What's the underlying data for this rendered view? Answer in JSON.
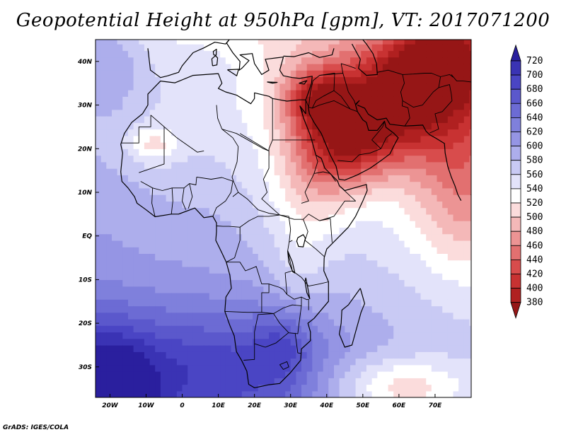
{
  "title": "Geopotential Height at 950hPa [gpm], VT: 2017071200",
  "credit": "GrADS: IGES/COLA",
  "map": {
    "lon_range": [
      -24,
      80
    ],
    "lat_range": [
      -37,
      45
    ],
    "lon_ticks": [
      {
        "value": -20,
        "label": "20W"
      },
      {
        "value": -10,
        "label": "10W"
      },
      {
        "value": 0,
        "label": "0"
      },
      {
        "value": 10,
        "label": "10E"
      },
      {
        "value": 20,
        "label": "20E"
      },
      {
        "value": 30,
        "label": "30E"
      },
      {
        "value": 40,
        "label": "40E"
      },
      {
        "value": 50,
        "label": "50E"
      },
      {
        "value": 60,
        "label": "60E"
      },
      {
        "value": 70,
        "label": "70E"
      }
    ],
    "lat_ticks": [
      {
        "value": 40,
        "label": "40N"
      },
      {
        "value": 30,
        "label": "30N"
      },
      {
        "value": 20,
        "label": "20N"
      },
      {
        "value": 10,
        "label": "10N"
      },
      {
        "value": 0,
        "label": "EQ"
      },
      {
        "value": -10,
        "label": "10S"
      },
      {
        "value": -20,
        "label": "20S"
      },
      {
        "value": -30,
        "label": "30S"
      }
    ]
  },
  "colorbar": {
    "levels": [
      720,
      700,
      680,
      660,
      640,
      620,
      600,
      580,
      560,
      540,
      520,
      500,
      480,
      460,
      440,
      420,
      400,
      380
    ],
    "colors": [
      "#2a1f9e",
      "#3a33b4",
      "#4a45c4",
      "#5b58cc",
      "#6c6bd4",
      "#7f80dc",
      "#9595e4",
      "#adaeec",
      "#c9caf4",
      "#e3e3fa",
      "#ffffff",
      "#fbdcdc",
      "#f4b8b8",
      "#ec9494",
      "#e27070",
      "#d84c4c",
      "#c83232",
      "#b02020",
      "#961616"
    ]
  },
  "field": {
    "centers": [
      {
        "lon": 60,
        "lat": 30,
        "value": 430,
        "sx": 16,
        "sy": 9
      },
      {
        "lon": 72,
        "lat": 40,
        "value": 440,
        "sx": 10,
        "sy": 6
      },
      {
        "lon": 45,
        "lat": 22,
        "value": 470,
        "sx": 9,
        "sy": 8
      },
      {
        "lon": 36,
        "lat": 32,
        "value": 500,
        "sx": 6,
        "sy": 5
      },
      {
        "lon": 78,
        "lat": 10,
        "value": 510,
        "sx": 10,
        "sy": 12
      },
      {
        "lon": -8,
        "lat": 21,
        "value": 520,
        "sx": 5,
        "sy": 3
      },
      {
        "lon": 35,
        "lat": 12,
        "value": 530,
        "sx": 8,
        "sy": 10
      },
      {
        "lon": 60,
        "lat": -35,
        "value": 490,
        "sx": 14,
        "sy": 5
      },
      {
        "lon": 32,
        "lat": -8,
        "value": 555,
        "sx": 5,
        "sy": 8
      },
      {
        "lon": -22,
        "lat": -36,
        "value": 710,
        "sx": 10,
        "sy": 10
      },
      {
        "lon": -20,
        "lat": 40,
        "value": 620,
        "sx": 7,
        "sy": 8
      },
      {
        "lon": 10,
        "lat": -30,
        "value": 650,
        "sx": 22,
        "sy": 10
      },
      {
        "lon": 28,
        "lat": -25,
        "value": 620,
        "sx": 6,
        "sy": 6
      },
      {
        "lon": 5,
        "lat": 38,
        "value": 590,
        "sx": 9,
        "sy": 5
      },
      {
        "lon": 10,
        "lat": 2,
        "value": 580,
        "sx": 8,
        "sy": 8
      }
    ],
    "base_value": 575
  }
}
